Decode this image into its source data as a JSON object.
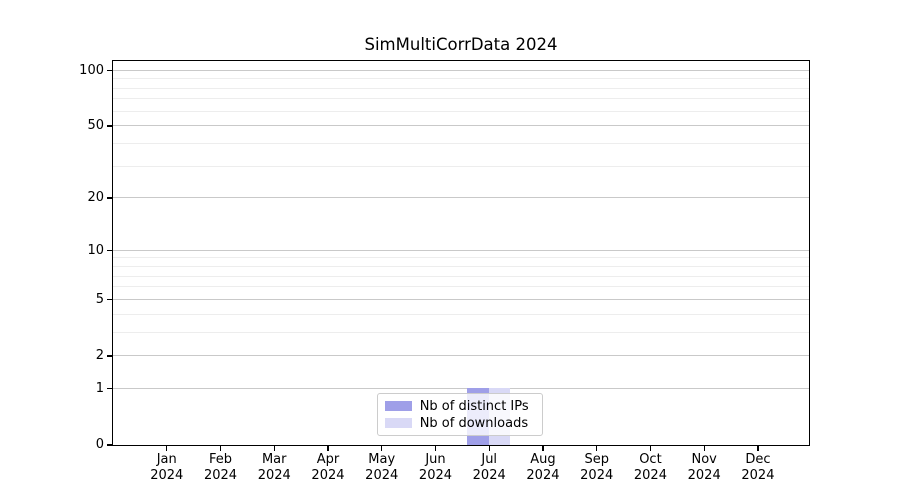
{
  "chart_data": {
    "type": "bar",
    "title": "SimMultiCorrData 2024",
    "categories": [
      "Jan",
      "Feb",
      "Mar",
      "Apr",
      "May",
      "Jun",
      "Jul",
      "Aug",
      "Sep",
      "Oct",
      "Nov",
      "Dec"
    ],
    "x_year_label": "2024",
    "series": [
      {
        "name": "Nb of distinct IPs",
        "color": "#9f9fe8",
        "values": [
          0,
          0,
          0,
          0,
          0,
          0,
          1,
          0,
          0,
          0,
          0,
          0
        ]
      },
      {
        "name": "Nb of downloads",
        "color": "#d9d9f6",
        "values": [
          0,
          0,
          0,
          0,
          0,
          0,
          1,
          0,
          0,
          0,
          0,
          0
        ]
      }
    ],
    "yscale": "log1p",
    "ylim": [
      0,
      112.8
    ],
    "y_major_ticks": [
      0,
      1,
      2,
      5,
      10,
      20,
      50,
      100
    ],
    "y_minor_ticks": [
      3,
      4,
      6,
      7,
      8,
      9,
      30,
      40,
      60,
      70,
      80,
      90
    ],
    "grid": "horizontal",
    "legend_position": "lower center",
    "style": {
      "major_grid_color": "#c9c9c9",
      "minor_grid_color": "#ededed",
      "spine_color": "#000000",
      "text_color": "#000000",
      "legend_border_color": "#cccccc",
      "legend_background": "rgba(255,255,255,0.8)"
    }
  }
}
